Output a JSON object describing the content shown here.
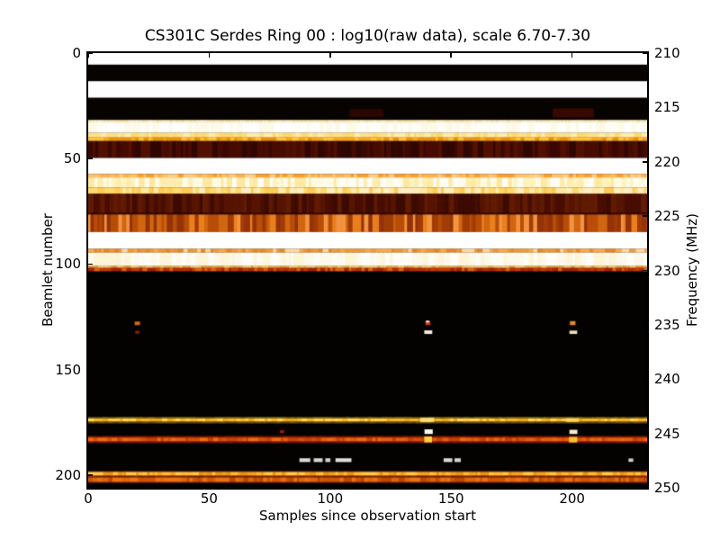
{
  "figure": {
    "title": "CS301C Serdes Ring 00 : log10(raw data), scale 6.70-7.30",
    "xlabel": "Samples since observation start",
    "ylabel_left": "Beamlet number",
    "ylabel_right": "Frequency (MHz)"
  },
  "chart_data": {
    "type": "heatmap",
    "title": "CS301C Serdes Ring 00 : log10(raw data), scale 6.70-7.30",
    "xlabel": "Samples since observation start",
    "ylabel": "Beamlet number",
    "ylabel_right": "Frequency (MHz)",
    "color_scale_log10": [
      6.7,
      7.3
    ],
    "colormap": "hot (black-red-orange-yellow-white)",
    "x_range": [
      0,
      231
    ],
    "beamlet_range": [
      0,
      206
    ],
    "freq_range_mhz": [
      210,
      250
    ],
    "x_ticks": [
      0,
      50,
      100,
      150,
      200
    ],
    "y_ticks_beamlet": [
      0,
      50,
      100,
      150,
      200
    ],
    "y_ticks_freq": [
      210,
      215,
      220,
      225,
      230,
      235,
      240,
      245,
      250
    ],
    "grid": false,
    "legend": "none",
    "bands": [
      {
        "b": [
          0,
          5.5
        ],
        "colors": [
          "#ffffff"
        ]
      },
      {
        "b": [
          5.5,
          13.3
        ],
        "colors": [
          "#060301"
        ]
      },
      {
        "b": [
          13.3,
          21.2
        ],
        "colors": [
          "#fdfdfd"
        ]
      },
      {
        "b": [
          21.2,
          31.7
        ],
        "colors": [
          "#070301"
        ]
      },
      {
        "b": [
          31.7,
          32.8
        ],
        "tex": "streak",
        "colors": [
          "#ffedb8",
          "#fff6d2",
          "#ffe9a8"
        ]
      },
      {
        "b": [
          32.8,
          37.8
        ],
        "tex": "streak",
        "colors": [
          "#ffffff",
          "#fffdf4",
          "#fff9e8"
        ]
      },
      {
        "b": [
          37.8,
          40.0
        ],
        "tex": "streak",
        "colors": [
          "#ffe08a",
          "#ffd86e",
          "#ffedae"
        ]
      },
      {
        "b": [
          40.0,
          41.7
        ],
        "tex": "streak",
        "colors": [
          "#f6a81e",
          "#ffc140",
          "#e69214"
        ]
      },
      {
        "b": [
          41.7,
          49.7
        ],
        "tex": "streak",
        "colors": [
          "#3a0800",
          "#470c00",
          "#2f0600",
          "#521000"
        ]
      },
      {
        "b": [
          49.7,
          57.3
        ],
        "colors": [
          "#ffffff"
        ]
      },
      {
        "b": [
          57.3,
          58.9
        ],
        "tex": "streak",
        "colors": [
          "#ffb34e",
          "#ff9e2c",
          "#ffd084",
          "#ffc468"
        ]
      },
      {
        "b": [
          58.9,
          63.7
        ],
        "tex": "streak",
        "colors": [
          "#fffbe2",
          "#fff2bc",
          "#ffedb0",
          "#fffdf4",
          "#ffe9a0"
        ]
      },
      {
        "b": [
          63.7,
          66.7
        ],
        "tex": "streak",
        "colors": [
          "#ffe9a4",
          "#ffd96e",
          "#ffcb58",
          "#ffefc0"
        ]
      },
      {
        "b": [
          66.7,
          75.8
        ],
        "tex": "streak",
        "colors": [
          "#480d00",
          "#571500",
          "#3d0a00",
          "#611b02"
        ]
      },
      {
        "b": [
          75.8,
          76.5
        ],
        "tex": "streak",
        "colors": [
          "#2e0700",
          "#3c0a00"
        ]
      },
      {
        "b": [
          76.5,
          84.8
        ],
        "tex": "streak",
        "colors": [
          "#d06612",
          "#b84d08",
          "#ea7f1e",
          "#943208",
          "#f29340",
          "#a03c04"
        ]
      },
      {
        "b": [
          84.8,
          92.8
        ],
        "colors": [
          "#ffffff"
        ]
      },
      {
        "b": [
          92.8,
          94.5
        ],
        "tex": "streak",
        "colors": [
          "#f5942e",
          "#fca843",
          "#ea851f",
          "#ffd9a2",
          "#f09a30"
        ]
      },
      {
        "b": [
          94.5,
          100.9
        ],
        "tex": "streak",
        "colors": [
          "#fdf8ea",
          "#fffdf6",
          "#fff4d6"
        ]
      },
      {
        "b": [
          100.9,
          101.8
        ],
        "tex": "streak",
        "colors": [
          "#f2b250",
          "#ffd884",
          "#eda03c"
        ]
      },
      {
        "b": [
          101.8,
          103.5
        ],
        "tex": "streak",
        "colors": [
          "#b32d00",
          "#c43a04",
          "#a22300",
          "#dd6314"
        ]
      },
      {
        "b": [
          103.5,
          172.3
        ],
        "colors": [
          "#040200"
        ]
      },
      {
        "b": [
          172.3,
          173.1
        ],
        "tex": "streak",
        "colors": [
          "#564508",
          "#6b560e"
        ]
      },
      {
        "b": [
          173.1,
          174.7
        ],
        "tex": "streak",
        "colors": [
          "#f5b52c",
          "#ffc948",
          "#e9a71c",
          "#ffd45c"
        ]
      },
      {
        "b": [
          174.7,
          175.6
        ],
        "tex": "streak",
        "colors": [
          "#6b500e",
          "#57430a"
        ]
      },
      {
        "b": [
          175.6,
          181.4
        ],
        "colors": [
          "#030200"
        ]
      },
      {
        "b": [
          181.4,
          182.2
        ],
        "tex": "streak",
        "colors": [
          "#701500",
          "#7e1c00"
        ]
      },
      {
        "b": [
          182.2,
          184.1
        ],
        "tex": "streak",
        "colors": [
          "#d94f08",
          "#e95d0d",
          "#c94205",
          "#f06a12"
        ]
      },
      {
        "b": [
          184.1,
          185.0
        ],
        "tex": "streak",
        "colors": [
          "#701500",
          "#611200"
        ]
      },
      {
        "b": [
          185.0,
          198.0
        ],
        "colors": [
          "#030200"
        ]
      },
      {
        "b": [
          198.0,
          198.5
        ],
        "colors": [
          "#742200"
        ]
      },
      {
        "b": [
          198.5,
          200.3
        ],
        "tex": "streak",
        "colors": [
          "#f3a326",
          "#ffba3c",
          "#e9941b",
          "#ffc94e"
        ]
      },
      {
        "b": [
          200.3,
          201.1
        ],
        "tex": "streak",
        "colors": [
          "#8c2b00",
          "#7a2200"
        ]
      },
      {
        "b": [
          201.1,
          203.3
        ],
        "tex": "streak",
        "colors": [
          "#cd5708",
          "#dd6710",
          "#b94b06",
          "#e97416"
        ]
      },
      {
        "b": [
          203.3,
          203.9
        ],
        "colors": [
          "#621700"
        ]
      },
      {
        "b": [
          203.9,
          206
        ],
        "colors": [
          "#020100"
        ]
      }
    ],
    "features": [
      {
        "name": "faint-smudge",
        "s": [
          108,
          122
        ],
        "b": [
          26.5,
          30.2
        ],
        "color": "#5a0c00",
        "alpha": 0.45
      },
      {
        "name": "faint-smudge",
        "s": [
          192,
          209
        ],
        "b": [
          26.2,
          30.5
        ],
        "color": "#660e00",
        "alpha": 0.5
      },
      {
        "name": "dot",
        "s": [
          19.2,
          21.4
        ],
        "b": [
          127.2,
          128.9
        ],
        "color": "#d86812"
      },
      {
        "name": "dot",
        "s": [
          19.4,
          21.2
        ],
        "b": [
          131.6,
          133.0
        ],
        "color": "#8c1700"
      },
      {
        "name": "dot",
        "s": [
          139.4,
          141.4
        ],
        "b": [
          126.9,
          128.9
        ],
        "color": "#cf3f08"
      },
      {
        "name": "speck",
        "s": [
          139.6,
          140.9
        ],
        "b": [
          126.8,
          127.6
        ],
        "color": "#ffffff"
      },
      {
        "name": "dash",
        "s": [
          138.9,
          142.2
        ],
        "b": [
          131.4,
          133.1
        ],
        "color": "#efeee4"
      },
      {
        "name": "dot",
        "s": [
          199.1,
          201.4
        ],
        "b": [
          127.0,
          128.9
        ],
        "color": "#e2862a"
      },
      {
        "name": "dash",
        "s": [
          198.9,
          202.1
        ],
        "b": [
          131.5,
          133.1
        ],
        "color": "#e7e3b8"
      },
      {
        "name": "bright-spot",
        "s": [
          137.2,
          143.0
        ],
        "b": [
          172.8,
          174.9
        ],
        "color": "#ffe27c",
        "alpha": 0.85
      },
      {
        "name": "bright-spot",
        "s": [
          197.4,
          202.8
        ],
        "b": [
          173.0,
          174.8
        ],
        "color": "#ffdb64",
        "alpha": 0.8
      },
      {
        "name": "dot",
        "s": [
          79.2,
          81.0
        ],
        "b": [
          178.7,
          180.1
        ],
        "color": "#9e1900"
      },
      {
        "name": "speck",
        "s": [
          139.0,
          142.4
        ],
        "b": [
          178.3,
          180.5
        ],
        "color": "#fdf9ef"
      },
      {
        "name": "speck",
        "s": [
          198.9,
          202.2
        ],
        "b": [
          178.5,
          180.5
        ],
        "color": "#f4edca"
      },
      {
        "name": "bright-spot",
        "s": [
          138.9,
          142.1
        ],
        "b": [
          181.7,
          184.5
        ],
        "color": "#ffd23e"
      },
      {
        "name": "bright-spot",
        "s": [
          198.7,
          202.1
        ],
        "b": [
          181.9,
          184.5
        ],
        "color": "#f8c332"
      },
      {
        "name": "dash",
        "s": [
          87.3,
          91.8
        ],
        "b": [
          192.0,
          193.8
        ],
        "color": "#dadada"
      },
      {
        "name": "dash",
        "s": [
          93.2,
          96.9
        ],
        "b": [
          192.0,
          193.8
        ],
        "color": "#d6d6d6"
      },
      {
        "name": "dash",
        "s": [
          98.0,
          100.1
        ],
        "b": [
          192.0,
          193.8
        ],
        "color": "#d2d2d2"
      },
      {
        "name": "dash",
        "s": [
          102.2,
          108.8
        ],
        "b": [
          192.0,
          193.8
        ],
        "color": "#dedede"
      },
      {
        "name": "dash",
        "s": [
          146.9,
          150.5
        ],
        "b": [
          192.0,
          193.8
        ],
        "color": "#d8d8d8"
      },
      {
        "name": "dash",
        "s": [
          151.4,
          154.0
        ],
        "b": [
          192.0,
          193.8
        ],
        "color": "#d4d4d4"
      },
      {
        "name": "dash",
        "s": [
          223.3,
          225.3
        ],
        "b": [
          192.1,
          193.7
        ],
        "color": "#cfcfcf"
      }
    ]
  }
}
